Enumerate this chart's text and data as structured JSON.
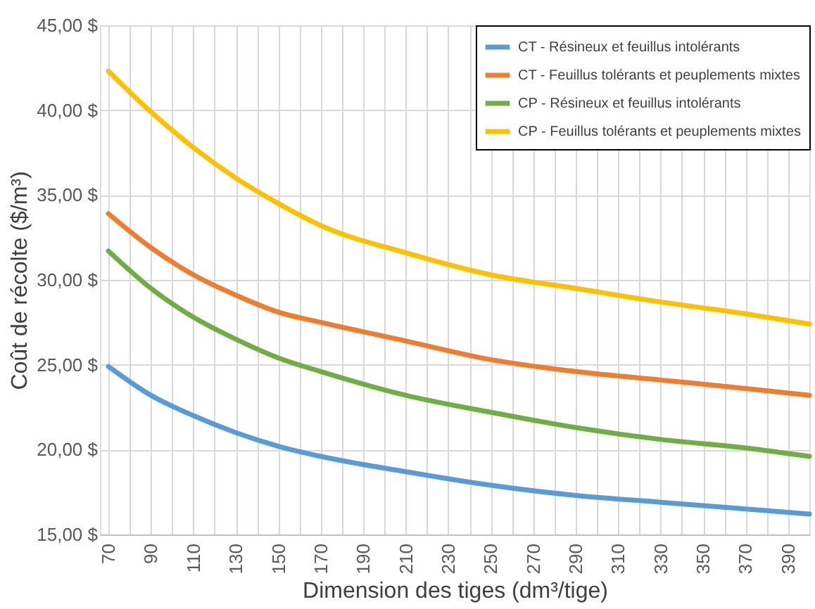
{
  "chart_data": {
    "type": "line",
    "xlabel": "Dimension des tiges (dm³/tige)",
    "ylabel": "Coût de récolte ($/m³)",
    "x": [
      70,
      90,
      110,
      130,
      150,
      170,
      210,
      250,
      290,
      330,
      370,
      400
    ],
    "series": [
      {
        "name": "CT - Résineux et feuillus intolérants",
        "color": "#5b9bd5",
        "values": [
          24.9,
          23.2,
          22.0,
          21.0,
          20.2,
          19.6,
          18.7,
          17.9,
          17.3,
          16.9,
          16.5,
          16.2
        ]
      },
      {
        "name": "CT - Feuillus tolérants et peuplements mixtes",
        "color": "#ed7d31",
        "values": [
          33.9,
          31.9,
          30.3,
          29.1,
          28.1,
          27.5,
          26.4,
          25.3,
          24.6,
          24.1,
          23.6,
          23.2
        ]
      },
      {
        "name": "CP - Résineux et feuillus intolérants",
        "color": "#70ad47",
        "values": [
          31.7,
          29.5,
          27.8,
          26.5,
          25.4,
          24.6,
          23.2,
          22.2,
          21.3,
          20.6,
          20.1,
          19.6
        ]
      },
      {
        "name": "CP - Feuillus tolérants et peuplements mixtes",
        "color": "#ffc000",
        "values": [
          42.3,
          39.9,
          37.8,
          36.0,
          34.5,
          33.2,
          31.6,
          30.3,
          29.5,
          28.7,
          28.0,
          27.4
        ]
      }
    ],
    "xlim": [
      66,
      400
    ],
    "xticks": [
      70,
      {
        "value": 80,
        "label": null
      },
      90,
      {
        "value": 100,
        "label": null
      },
      110,
      {
        "value": 120,
        "label": null
      },
      130,
      {
        "value": 140,
        "label": null
      },
      150,
      {
        "value": 160,
        "label": null
      },
      170,
      {
        "value": 180,
        "label": null
      },
      190,
      {
        "value": 200,
        "label": null
      },
      210,
      {
        "value": 220,
        "label": null
      },
      230,
      {
        "value": 240,
        "label": null
      },
      250,
      {
        "value": 260,
        "label": null
      },
      270,
      {
        "value": 280,
        "label": null
      },
      290,
      {
        "value": 300,
        "label": null
      },
      310,
      {
        "value": 320,
        "label": null
      },
      330,
      {
        "value": 340,
        "label": null
      },
      350,
      {
        "value": 360,
        "label": null
      },
      370,
      {
        "value": 380,
        "label": null
      },
      390
    ],
    "ylim": [
      15,
      45
    ],
    "yticks": [
      {
        "value": 15,
        "label": "15,00 $"
      },
      {
        "value": 20,
        "label": "20,00 $"
      },
      {
        "value": 25,
        "label": "25,00 $"
      },
      {
        "value": 30,
        "label": "30,00 $"
      },
      {
        "value": 35,
        "label": "35,00 $"
      },
      {
        "value": 40,
        "label": "40,00 $"
      },
      {
        "value": 45,
        "label": "45,00 $"
      }
    ],
    "grid": true,
    "legend": "top right",
    "marker": "none",
    "line_style": "solid"
  }
}
